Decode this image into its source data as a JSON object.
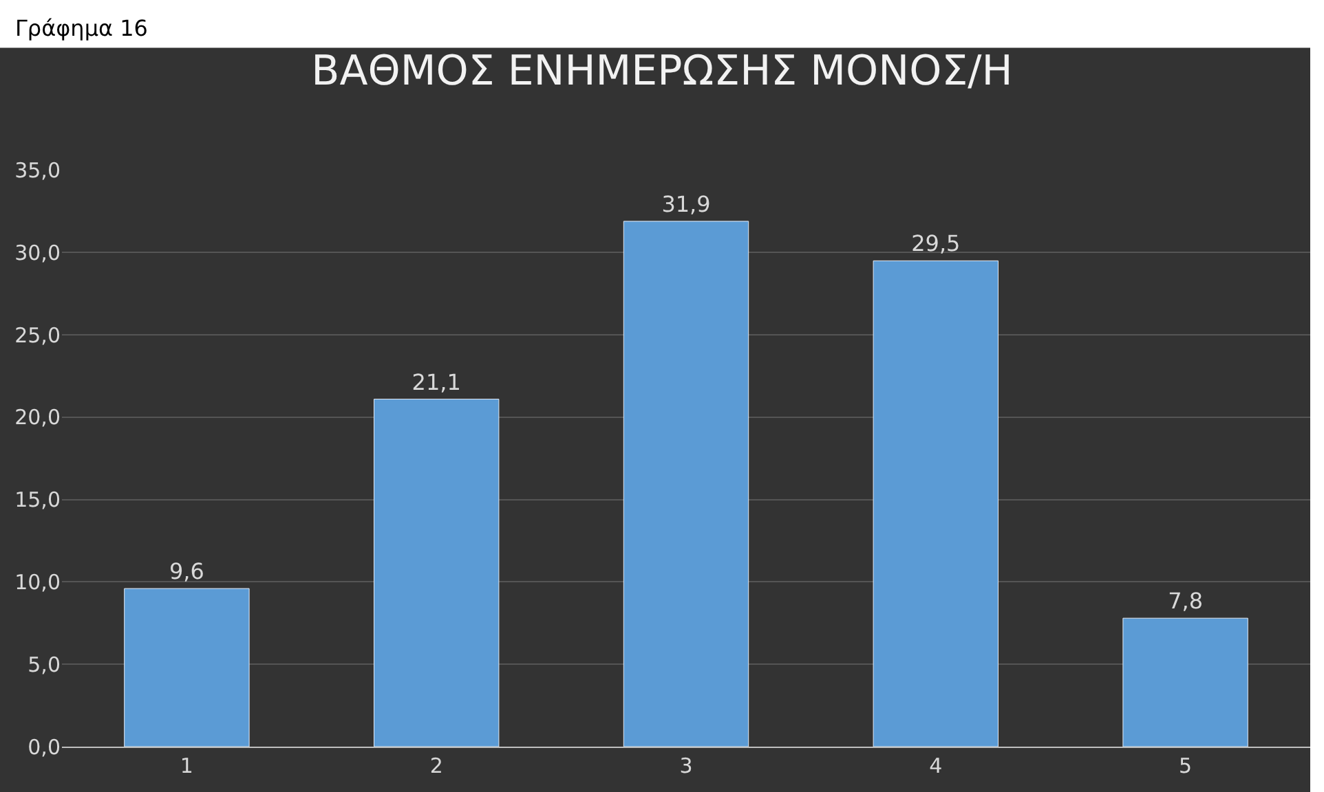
{
  "chart_data": {
    "type": "bar",
    "title": "ΒΑΘΜΟΣ ΕΝΗΜΕΡΩΣΗΣ ΜΟΝΟΣ/Η",
    "annotations": [
      "Γράφημα 16"
    ],
    "categories": [
      "1",
      "2",
      "3",
      "4",
      "5"
    ],
    "values": [
      9.6,
      21.1,
      31.9,
      29.5,
      7.8
    ],
    "color": "#5b9bd5",
    "value_labels": [
      "9,6",
      "21,1",
      "31,9",
      "29,5",
      "7,8"
    ],
    "ylim": [
      0,
      35
    ],
    "yticks": [
      {
        "value": 0,
        "label": "0,0"
      },
      {
        "value": 5,
        "label": "5,0"
      },
      {
        "value": 10,
        "label": "10,0"
      },
      {
        "value": 15,
        "label": "15,0"
      },
      {
        "value": 20,
        "label": "20,0"
      },
      {
        "value": 25,
        "label": "25,0"
      },
      {
        "value": 30,
        "label": "30,0"
      },
      {
        "value": 35,
        "label": "35,0"
      }
    ],
    "grid": "y"
  }
}
